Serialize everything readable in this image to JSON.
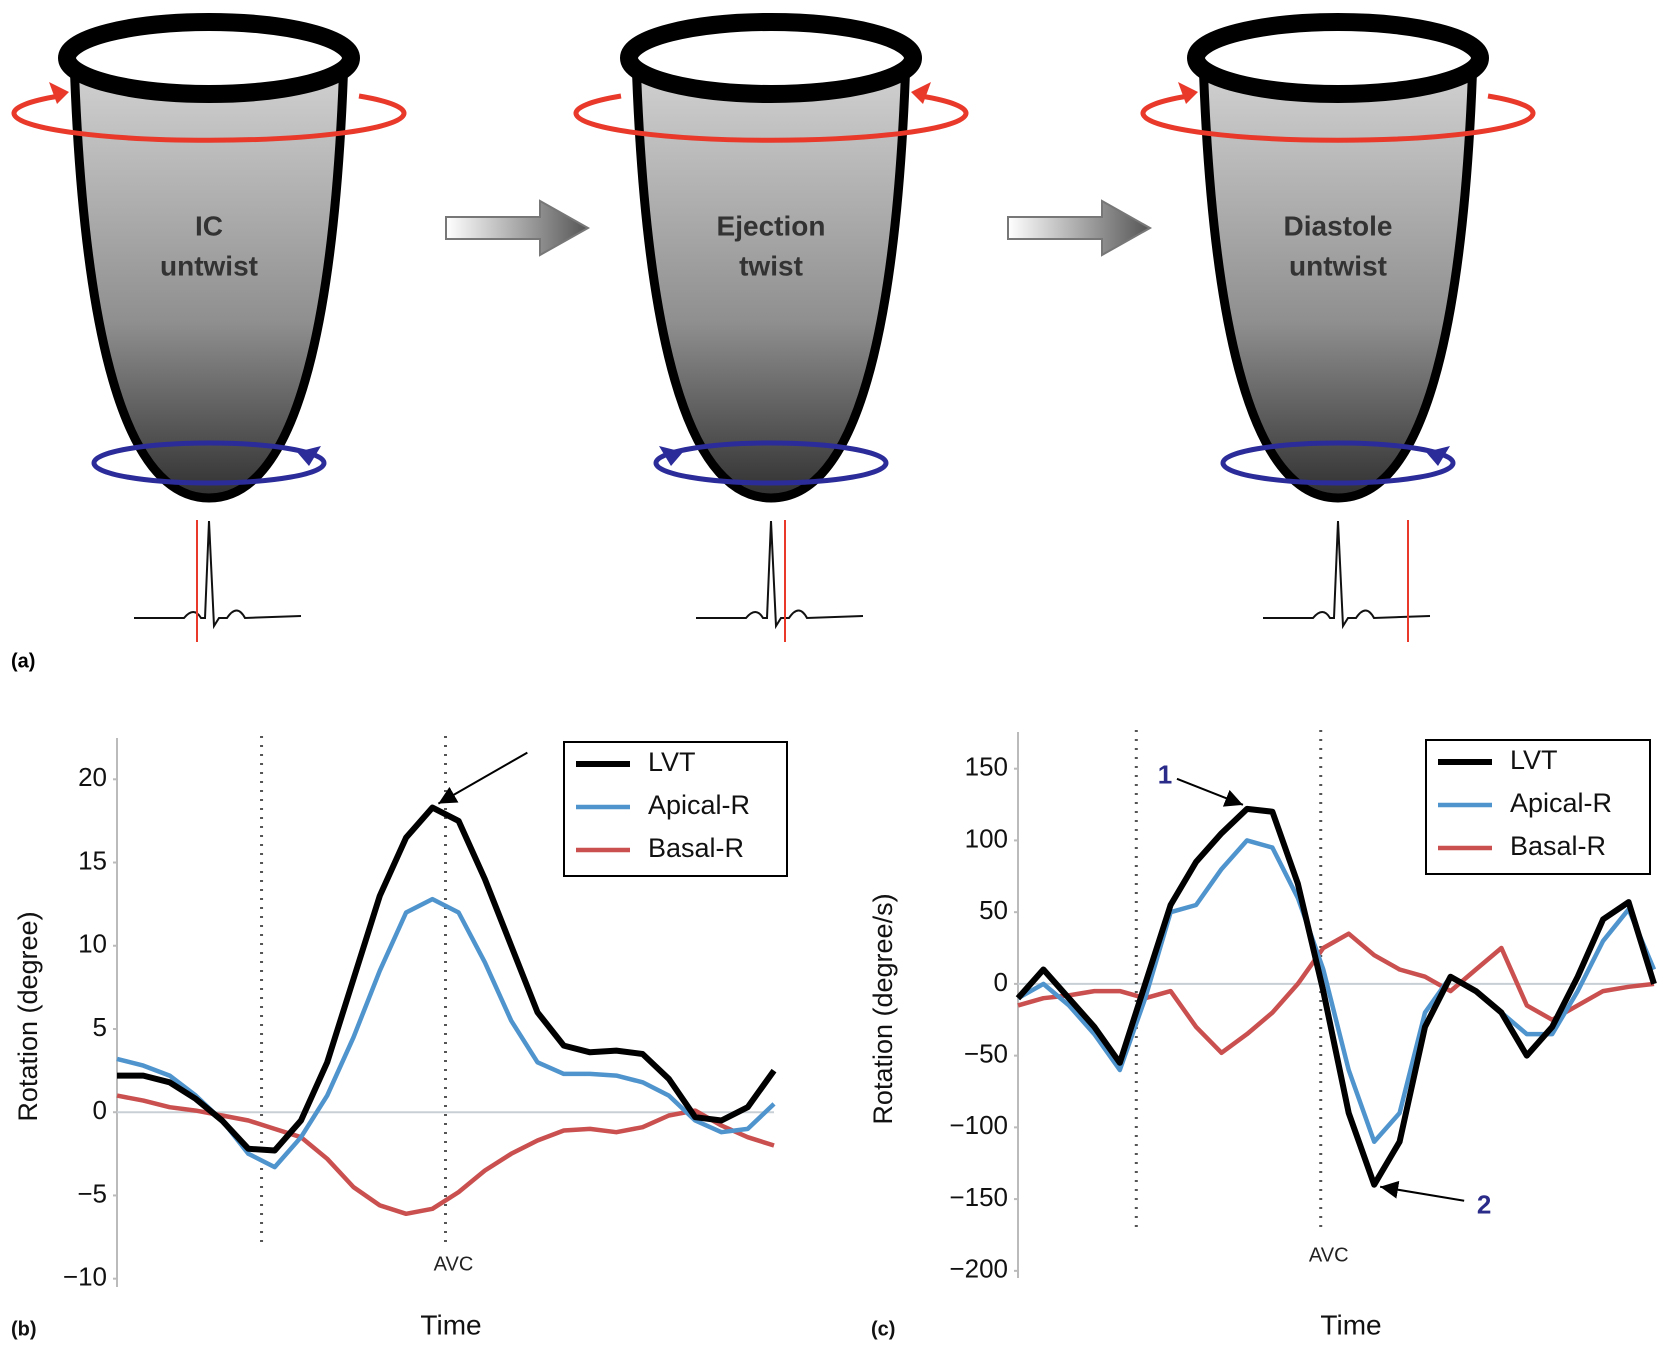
{
  "panel_a": {
    "label": "(a)",
    "stages": [
      {
        "line1": "IC",
        "line2": "untwist"
      },
      {
        "line1": "Ejection",
        "line2": "twist"
      },
      {
        "line1": "Diastole",
        "line2": "untwist"
      }
    ]
  },
  "chart_data": [
    {
      "type": "line",
      "panel_label": "(b)",
      "x_label": "Time",
      "y_label": "Rotation (degree)",
      "x": [
        0,
        2,
        4,
        6,
        8,
        10,
        12,
        14,
        16,
        18,
        20,
        22,
        24,
        26,
        28,
        30,
        32,
        34,
        36,
        38,
        40,
        42,
        44,
        46,
        48,
        50
      ],
      "xlim": [
        0,
        50
      ],
      "ylim": [
        -10.5,
        22
      ],
      "yticks": [
        {
          "value": -10,
          "label": "−10"
        },
        {
          "value": -5,
          "label": "−5"
        },
        0,
        5,
        10,
        15,
        20
      ],
      "legend": "upper right",
      "series": [
        {
          "name": "LVT",
          "color": "#000000",
          "values": [
            2.2,
            2.2,
            1.8,
            0.8,
            -0.5,
            -2.2,
            -2.3,
            -0.5,
            3,
            8,
            13,
            16.5,
            18.3,
            17.5,
            14,
            10,
            6,
            4,
            3.6,
            3.7,
            3.5,
            2,
            -0.3,
            -0.5,
            0.3,
            2.5
          ]
        },
        {
          "name": "Apical-R",
          "color": "#4f94cd",
          "values": [
            3.2,
            2.8,
            2.2,
            1,
            -0.5,
            -2.5,
            -3.3,
            -1.5,
            1,
            4.5,
            8.5,
            12,
            12.8,
            12,
            9,
            5.5,
            3,
            2.3,
            2.3,
            2.2,
            1.8,
            1,
            -0.5,
            -1.2,
            -1,
            0.5
          ]
        },
        {
          "name": "Basal-R",
          "color": "#c9504f",
          "values": [
            1,
            0.7,
            0.3,
            0.1,
            -0.2,
            -0.5,
            -1,
            -1.5,
            -2.8,
            -4.5,
            -5.6,
            -6.1,
            -5.8,
            -4.8,
            -3.5,
            -2.5,
            -1.7,
            -1.1,
            -1,
            -1.2,
            -0.9,
            -0.2,
            0.1,
            -0.8,
            -1.5,
            -2
          ]
        }
      ],
      "vlines": [
        {
          "x": 11
        },
        {
          "x": 25,
          "label": "AVC"
        }
      ],
      "annotations": [
        {
          "x": 24,
          "y": 18.3
        }
      ]
    },
    {
      "type": "line",
      "panel_label": "(c)",
      "x_label": "Time",
      "y_label": "Rotation (degree/s)",
      "x": [
        0,
        2,
        4,
        6,
        8,
        10,
        12,
        14,
        16,
        18,
        20,
        22,
        24,
        26,
        28,
        30,
        32,
        34,
        36,
        38,
        40,
        42,
        44,
        46,
        48,
        50
      ],
      "xlim": [
        0,
        50
      ],
      "ylim": [
        -205,
        170
      ],
      "yticks": [
        {
          "value": -200,
          "label": "−200"
        },
        {
          "value": -150,
          "label": "−150"
        },
        {
          "value": -100,
          "label": "−100"
        },
        {
          "value": -50,
          "label": "−50"
        },
        0,
        50,
        100,
        150
      ],
      "legend": "upper right",
      "series": [
        {
          "name": "LVT",
          "color": "#000000",
          "values": [
            -10,
            10,
            -10,
            -30,
            -55,
            0,
            55,
            85,
            105,
            122,
            120,
            70,
            -5,
            -90,
            -140,
            -110,
            -30,
            5,
            -5,
            -20,
            -50,
            -30,
            5,
            45,
            57,
            0
          ]
        },
        {
          "name": "Apical-R",
          "color": "#4f94cd",
          "values": [
            -10,
            0,
            -15,
            -35,
            -60,
            -10,
            50,
            55,
            80,
            100,
            95,
            60,
            10,
            -60,
            -110,
            -90,
            -20,
            5,
            -5,
            -20,
            -35,
            -35,
            -5,
            30,
            52,
            10
          ]
        },
        {
          "name": "Basal-R",
          "color": "#c9504f",
          "values": [
            -15,
            -10,
            -8,
            -5,
            -5,
            -10,
            -5,
            -30,
            -48,
            -35,
            -20,
            0,
            25,
            35,
            20,
            10,
            5,
            -5,
            10,
            25,
            -15,
            -25,
            -15,
            -5,
            -2,
            0
          ]
        }
      ],
      "vlines": [
        {
          "x": 9.3
        },
        {
          "x": 23.8,
          "label": "AVC"
        }
      ],
      "annotations": [
        {
          "text": "1",
          "x": 18,
          "y": 122
        },
        {
          "text": "2",
          "x": 28,
          "y": -140
        }
      ]
    }
  ]
}
